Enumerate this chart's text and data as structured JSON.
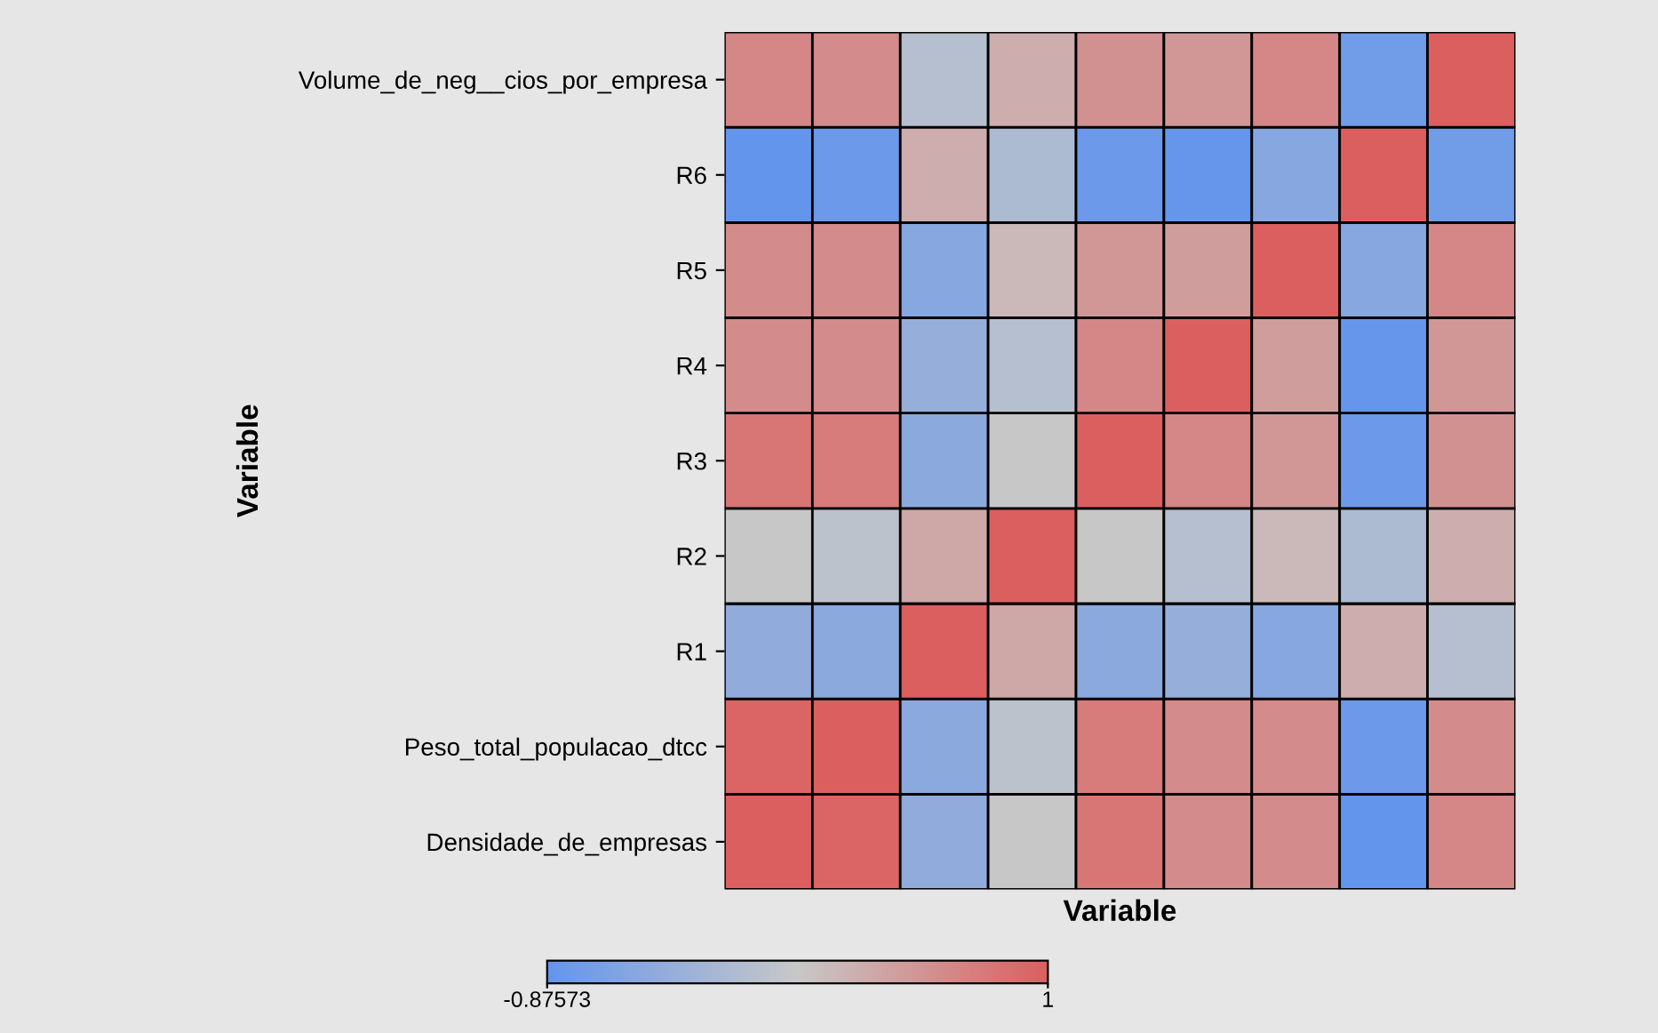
{
  "chart_data": {
    "type": "heatmap",
    "xlabel": "Variable",
    "ylabel": "Variable",
    "categories": [
      null,
      null,
      null,
      null,
      null,
      null,
      null,
      null,
      null
    ],
    "y_categories": [
      "Volume_de_neg__cios_por_empresa",
      "R6",
      "R5",
      "R4",
      "R3",
      "R2",
      "R1",
      "Peso_total_populacao_dtcc",
      "Densidade_de_empresas"
    ],
    "cells": [
      [
        0.65,
        0.6,
        -0.1,
        0.3,
        0.55,
        0.5,
        0.65,
        -0.75,
        1
      ],
      [
        -0.87573,
        -0.8,
        0.3,
        -0.2,
        -0.8,
        -0.85,
        -0.55,
        1,
        -0.75
      ],
      [
        0.6,
        0.6,
        -0.55,
        0.2,
        0.5,
        0.45,
        1,
        -0.55,
        0.65
      ],
      [
        0.6,
        0.6,
        -0.4,
        -0.1,
        0.65,
        1,
        0.45,
        -0.85,
        0.5
      ],
      [
        0.8,
        0.75,
        -0.5,
        0.05,
        1,
        0.65,
        0.5,
        -0.8,
        0.55
      ],
      [
        0.05,
        -0.05,
        0.35,
        1,
        0.05,
        -0.1,
        0.2,
        -0.2,
        0.3
      ],
      [
        -0.45,
        -0.5,
        1,
        0.35,
        -0.5,
        -0.4,
        -0.55,
        0.3,
        -0.1
      ],
      [
        0.95,
        1,
        -0.5,
        -0.05,
        0.75,
        0.6,
        0.6,
        -0.8,
        0.6
      ],
      [
        1,
        0.95,
        -0.45,
        0.05,
        0.8,
        0.6,
        0.6,
        -0.87573,
        0.65
      ]
    ],
    "clim": [
      -0.87573,
      1
    ],
    "cticks": [
      {
        "value": -0.87573,
        "label": "-0.87573"
      },
      {
        "value": 1,
        "label": "1"
      }
    ],
    "tick_labels": "y"
  }
}
